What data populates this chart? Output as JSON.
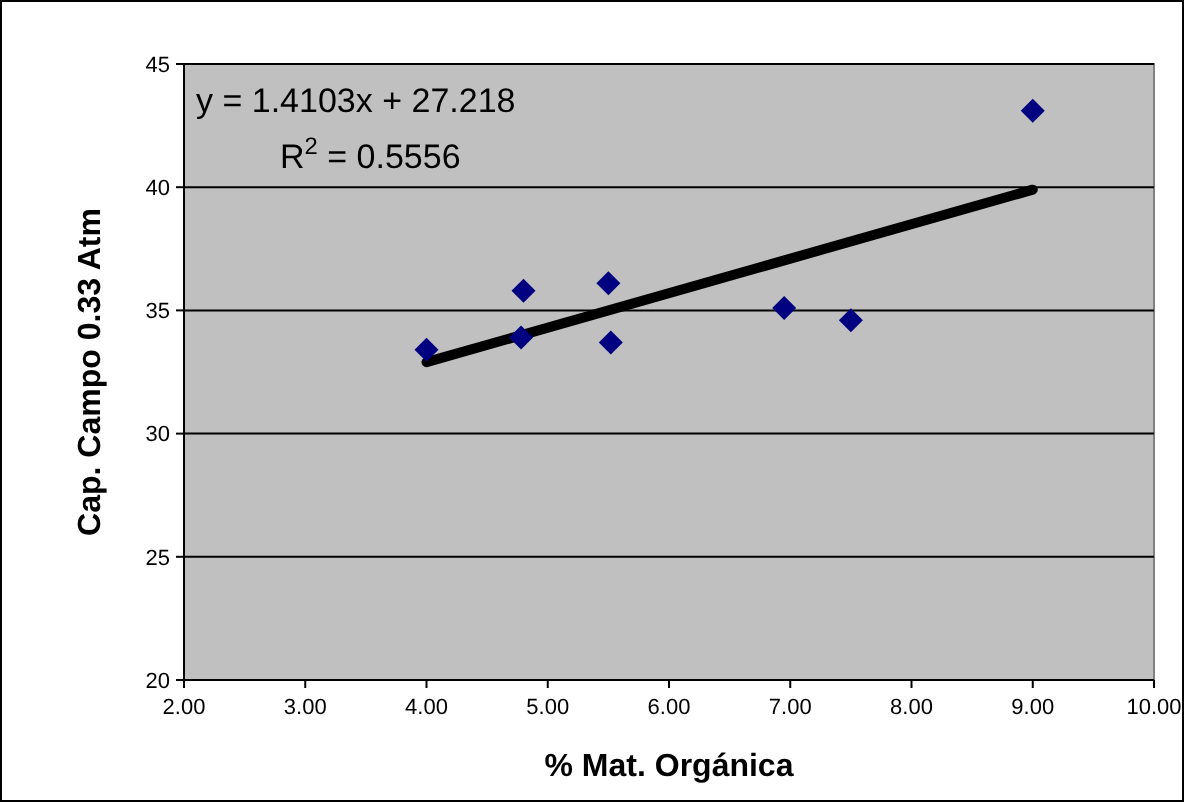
{
  "chart_data": {
    "type": "scatter",
    "xlabel": "% Mat. Orgánica",
    "ylabel": "Cap. Campo 0.33 Atm",
    "x": [
      4.0,
      4.8,
      4.78,
      5.5,
      5.52,
      6.95,
      7.5,
      9.0
    ],
    "series": [
      {
        "color": "#000080",
        "marker": "diamond",
        "values": [
          33.4,
          35.8,
          33.9,
          36.1,
          33.7,
          35.1,
          34.6,
          43.1
        ]
      },
      {
        "type": "line",
        "color": "#000000",
        "marker": "none",
        "line_style": "solid",
        "x": [
          4.0,
          9.0
        ],
        "values": [
          32.9,
          39.9
        ]
      }
    ],
    "xlim": [
      2,
      10
    ],
    "xticks": [
      {
        "value": 2,
        "label": "2.00"
      },
      {
        "value": 3,
        "label": "3.00"
      },
      {
        "value": 4,
        "label": "4.00"
      },
      {
        "value": 5,
        "label": "5.00"
      },
      {
        "value": 6,
        "label": "6.00"
      },
      {
        "value": 7,
        "label": "7.00"
      },
      {
        "value": 8,
        "label": "8.00"
      },
      {
        "value": 9,
        "label": "9.00"
      },
      {
        "value": 10,
        "label": "10.00"
      }
    ],
    "ylim": [
      20,
      45
    ],
    "yticks": [
      20,
      25,
      30,
      35,
      40,
      45
    ],
    "grid": "y",
    "annotations": [
      "y = 1.4103x + 27.218",
      "R$^{2}$ = 0.5556"
    ]
  }
}
